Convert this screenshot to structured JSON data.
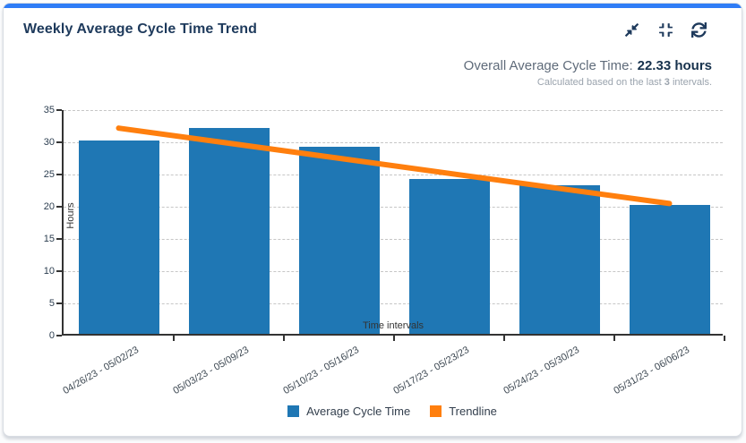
{
  "card": {
    "title": "Weekly Average Cycle Time Trend",
    "toolbar": [
      {
        "name": "collapse-button",
        "icon": "compress-arrows-icon"
      },
      {
        "name": "compress-button",
        "icon": "compress-icon"
      },
      {
        "name": "refresh-button",
        "icon": "refresh-icon"
      }
    ],
    "summary": {
      "label": "Overall Average Cycle Time:",
      "value": "22.33 hours",
      "caption_prefix": "Calculated based on the last ",
      "caption_bold": "3",
      "caption_suffix": " intervals."
    }
  },
  "chart_data": {
    "type": "bar",
    "categories": [
      "04/26/23 - 05/02/23",
      "05/03/23 - 05/09/23",
      "05/10/23 - 05/16/23",
      "05/17/23 - 05/23/23",
      "05/24/23 - 05/30/23",
      "05/31/23 - 06/06/23"
    ],
    "series": [
      {
        "name": "Average Cycle Time",
        "type": "bar",
        "values": [
          30,
          32,
          29,
          24,
          23,
          20
        ]
      },
      {
        "name": "Trendline",
        "type": "line",
        "values": [
          32.2,
          29.9,
          27.5,
          25.2,
          22.8,
          20.5
        ]
      }
    ],
    "xlabel": "Time intervals",
    "ylabel": "Hours",
    "ylim": [
      0,
      35
    ],
    "ytick_step": 5,
    "grid": "horizontal-dashed",
    "legend_position": "bottom"
  },
  "colors": {
    "accent_bar": "#2e7cf6",
    "title_text": "#1e3a5c",
    "icon": "#1e3a5c",
    "summary_label": "#5f6b7a",
    "summary_value": "#17324d",
    "caption": "#9aa3ad",
    "bar": "#1f77b4",
    "trendline": "#ff7f0e"
  }
}
